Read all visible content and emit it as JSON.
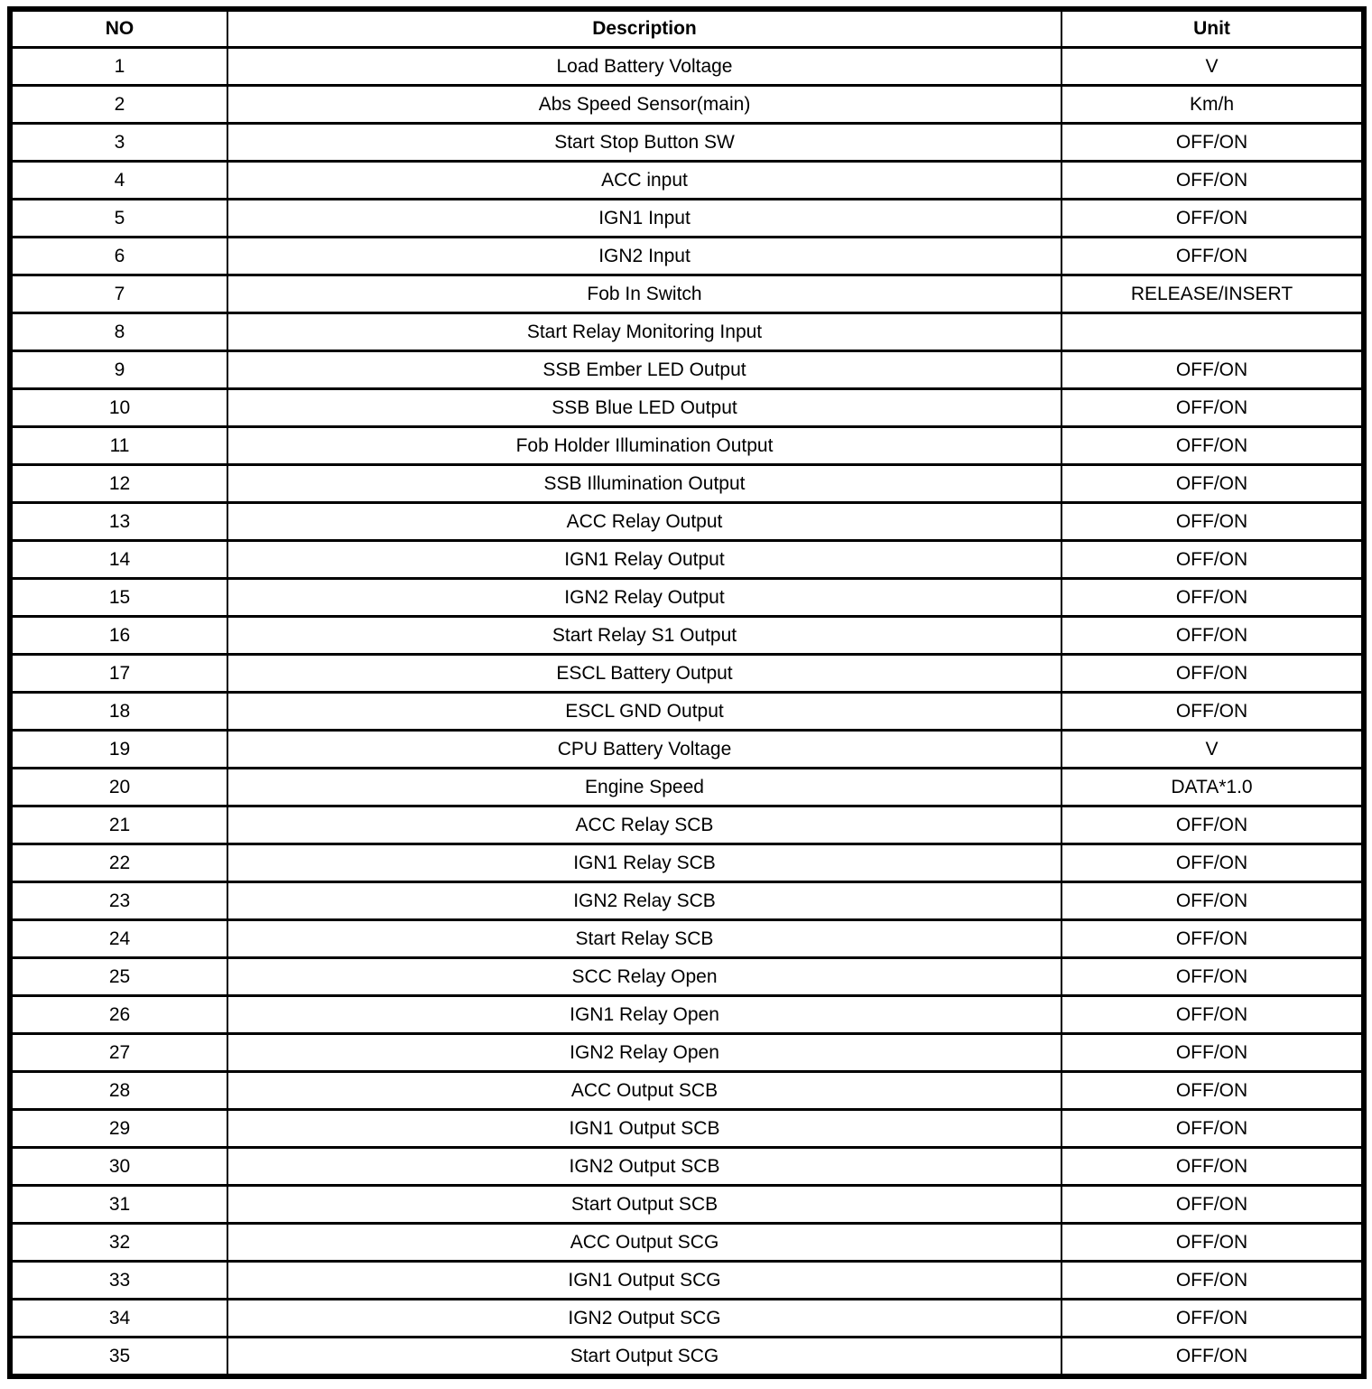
{
  "colors": {
    "background": "#ffffff",
    "border": "#000000",
    "text": "#000000"
  },
  "table": {
    "columns": [
      {
        "label": "NO"
      },
      {
        "label": "Description"
      },
      {
        "label": "Unit"
      }
    ],
    "rows": [
      {
        "no": "1",
        "description": "Load Battery Voltage",
        "unit": "V"
      },
      {
        "no": "2",
        "description": "Abs Speed Sensor(main)",
        "unit": "Km/h"
      },
      {
        "no": "3",
        "description": "Start Stop Button SW",
        "unit": "OFF/ON"
      },
      {
        "no": "4",
        "description": "ACC input",
        "unit": "OFF/ON"
      },
      {
        "no": "5",
        "description": "IGN1 Input",
        "unit": "OFF/ON"
      },
      {
        "no": "6",
        "description": "IGN2 Input",
        "unit": "OFF/ON"
      },
      {
        "no": "7",
        "description": "Fob In Switch",
        "unit": "RELEASE/INSERT"
      },
      {
        "no": "8",
        "description": "Start Relay Monitoring Input",
        "unit": ""
      },
      {
        "no": "9",
        "description": "SSB Ember LED Output",
        "unit": "OFF/ON"
      },
      {
        "no": "10",
        "description": "SSB Blue LED Output",
        "unit": "OFF/ON"
      },
      {
        "no": "11",
        "description": "Fob Holder Illumination Output",
        "unit": "OFF/ON"
      },
      {
        "no": "12",
        "description": "SSB Illumination Output",
        "unit": "OFF/ON"
      },
      {
        "no": "13",
        "description": "ACC Relay Output",
        "unit": "OFF/ON"
      },
      {
        "no": "14",
        "description": "IGN1 Relay Output",
        "unit": "OFF/ON"
      },
      {
        "no": "15",
        "description": "IGN2 Relay Output",
        "unit": "OFF/ON"
      },
      {
        "no": "16",
        "description": "Start Relay S1 Output",
        "unit": "OFF/ON"
      },
      {
        "no": "17",
        "description": "ESCL Battery Output",
        "unit": "OFF/ON"
      },
      {
        "no": "18",
        "description": "ESCL GND Output",
        "unit": "OFF/ON"
      },
      {
        "no": "19",
        "description": "CPU Battery Voltage",
        "unit": "V"
      },
      {
        "no": "20",
        "description": "Engine Speed",
        "unit": "DATA*1.0"
      },
      {
        "no": "21",
        "description": "ACC Relay SCB",
        "unit": "OFF/ON"
      },
      {
        "no": "22",
        "description": "IGN1 Relay SCB",
        "unit": "OFF/ON"
      },
      {
        "no": "23",
        "description": "IGN2 Relay SCB",
        "unit": "OFF/ON"
      },
      {
        "no": "24",
        "description": "Start Relay SCB",
        "unit": "OFF/ON"
      },
      {
        "no": "25",
        "description": "SCC Relay Open",
        "unit": "OFF/ON"
      },
      {
        "no": "26",
        "description": "IGN1 Relay Open",
        "unit": "OFF/ON"
      },
      {
        "no": "27",
        "description": "IGN2 Relay Open",
        "unit": "OFF/ON"
      },
      {
        "no": "28",
        "description": "ACC Output SCB",
        "unit": "OFF/ON"
      },
      {
        "no": "29",
        "description": "IGN1 Output SCB",
        "unit": "OFF/ON"
      },
      {
        "no": "30",
        "description": "IGN2 Output SCB",
        "unit": "OFF/ON"
      },
      {
        "no": "31",
        "description": "Start Output SCB",
        "unit": "OFF/ON"
      },
      {
        "no": "32",
        "description": "ACC Output SCG",
        "unit": "OFF/ON"
      },
      {
        "no": "33",
        "description": "IGN1 Output SCG",
        "unit": "OFF/ON"
      },
      {
        "no": "34",
        "description": "IGN2 Output SCG",
        "unit": "OFF/ON"
      },
      {
        "no": "35",
        "description": "Start Output SCG",
        "unit": "OFF/ON"
      }
    ]
  }
}
